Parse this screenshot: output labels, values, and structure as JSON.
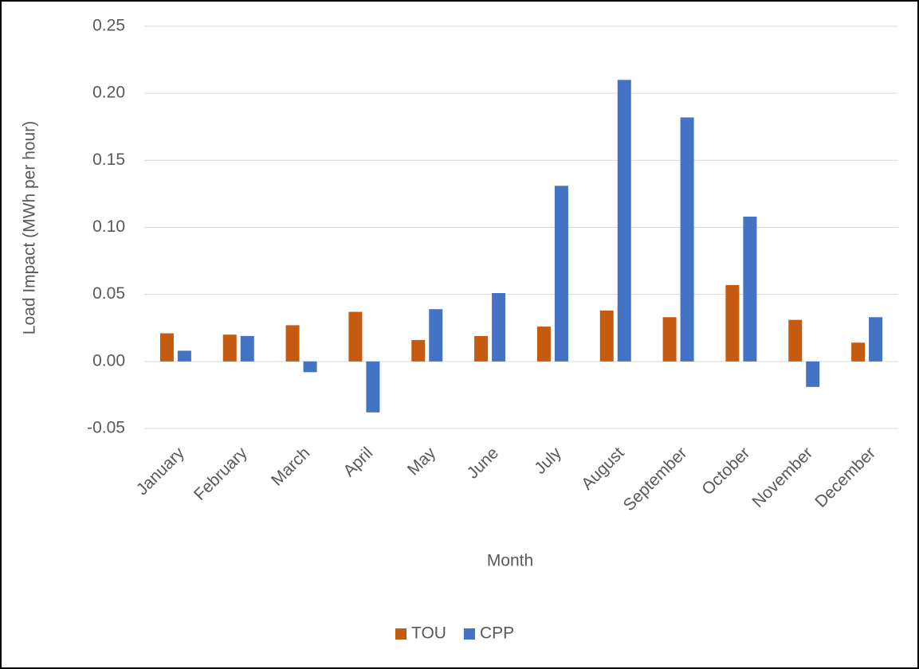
{
  "chart_data": {
    "type": "bar",
    "x_label": "Month",
    "y_label": "Load Impact (MWh per hour)",
    "categories": [
      "January",
      "February",
      "March",
      "April",
      "May",
      "June",
      "July",
      "August",
      "September",
      "October",
      "November",
      "December"
    ],
    "series": [
      {
        "name": "TOU",
        "color": "#c55a11",
        "values": [
          0.021,
          0.02,
          0.027,
          0.037,
          0.016,
          0.019,
          0.026,
          0.038,
          0.033,
          0.057,
          0.031,
          0.014
        ]
      },
      {
        "name": "CPP",
        "color": "#4472c4",
        "values": [
          0.008,
          0.019,
          -0.008,
          -0.038,
          0.039,
          0.051,
          0.131,
          0.21,
          0.182,
          0.108,
          -0.019,
          0.033
        ]
      }
    ],
    "ylim": [
      -0.05,
      0.25
    ],
    "yticks": [
      -0.05,
      {
        "value": 0,
        "label": "0.00"
      },
      0.05,
      {
        "value": 0.1,
        "label": "0.10"
      },
      0.15,
      {
        "value": 0.2,
        "label": "0.20"
      },
      0.25
    ],
    "grid": true,
    "legend": "bottom"
  }
}
